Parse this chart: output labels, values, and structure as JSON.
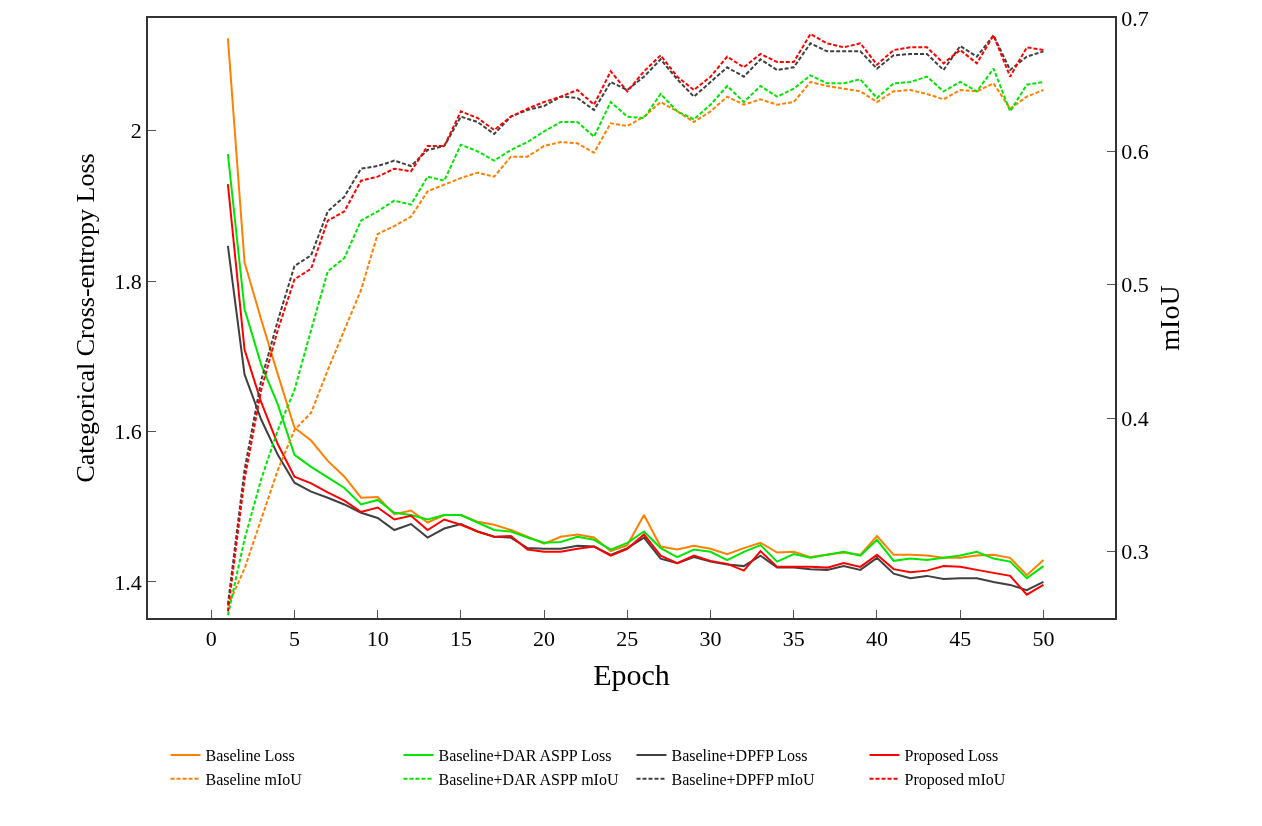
{
  "chart_data": {
    "type": "line",
    "xlabel": "Epoch",
    "ylabel": "Categorical Cross-entropy Loss",
    "y2label": "mIoU",
    "x": [
      1,
      2,
      3,
      4,
      5,
      6,
      7,
      8,
      9,
      10,
      11,
      12,
      13,
      14,
      15,
      16,
      17,
      18,
      19,
      20,
      21,
      22,
      23,
      24,
      25,
      26,
      27,
      28,
      29,
      30,
      31,
      32,
      33,
      34,
      35,
      36,
      37,
      38,
      39,
      40,
      41,
      42,
      43,
      44,
      45,
      46,
      47,
      48,
      49,
      50
    ],
    "xlim": [
      -3.8,
      54.3
    ],
    "xticks": [
      0,
      5,
      10,
      15,
      20,
      25,
      30,
      35,
      40,
      45,
      50
    ],
    "ylim": [
      1.352,
      2.15
    ],
    "yticks": [
      1.4,
      1.6,
      1.8,
      2
    ],
    "y2lim": [
      0.25,
      0.7
    ],
    "y2ticks": [
      0.3,
      0.4,
      0.5,
      0.6,
      0.7
    ],
    "legend": "bottom",
    "series": [
      {
        "name": "Baseline Loss",
        "color": "#ff8000",
        "line_style": "solid",
        "values": [
          2.123,
          1.825,
          1.749,
          1.676,
          1.605,
          1.588,
          1.561,
          1.54,
          1.512,
          1.513,
          1.49,
          1.495,
          1.479,
          1.489,
          1.489,
          1.48,
          1.476,
          1.469,
          1.46,
          1.451,
          1.46,
          1.463,
          1.459,
          1.441,
          1.449,
          1.489,
          1.447,
          1.443,
          1.448,
          1.444,
          1.437,
          1.445,
          1.452,
          1.439,
          1.44,
          1.433,
          1.436,
          1.439,
          1.436,
          1.461,
          1.436,
          1.436,
          1.435,
          1.432,
          1.432,
          1.435,
          1.436,
          1.432,
          1.409,
          1.429
        ]
      },
      {
        "name": "Baseline+DAR ASPP Loss",
        "color": "#00e600",
        "line_style": "solid",
        "values": [
          1.969,
          1.763,
          1.689,
          1.636,
          1.569,
          1.553,
          1.539,
          1.525,
          1.503,
          1.509,
          1.492,
          1.489,
          1.483,
          1.489,
          1.489,
          1.479,
          1.469,
          1.467,
          1.459,
          1.452,
          1.453,
          1.46,
          1.456,
          1.443,
          1.452,
          1.467,
          1.445,
          1.433,
          1.443,
          1.44,
          1.429,
          1.44,
          1.449,
          1.427,
          1.437,
          1.432,
          1.436,
          1.44,
          1.435,
          1.456,
          1.428,
          1.431,
          1.429,
          1.432,
          1.435,
          1.44,
          1.431,
          1.427,
          1.405,
          1.421
        ]
      },
      {
        "name": "Baseline+DPFP Loss",
        "color": "#404040",
        "line_style": "solid",
        "values": [
          1.847,
          1.676,
          1.616,
          1.569,
          1.532,
          1.52,
          1.512,
          1.503,
          1.492,
          1.485,
          1.469,
          1.477,
          1.459,
          1.471,
          1.477,
          1.467,
          1.46,
          1.459,
          1.445,
          1.444,
          1.444,
          1.448,
          1.447,
          1.436,
          1.445,
          1.459,
          1.431,
          1.425,
          1.433,
          1.427,
          1.423,
          1.421,
          1.435,
          1.419,
          1.419,
          1.417,
          1.416,
          1.421,
          1.416,
          1.432,
          1.411,
          1.405,
          1.408,
          1.404,
          1.405,
          1.405,
          1.4,
          1.396,
          1.389,
          1.4
        ]
      },
      {
        "name": "Proposed Loss",
        "color": "#ff0000",
        "line_style": "solid",
        "values": [
          1.929,
          1.709,
          1.639,
          1.583,
          1.54,
          1.531,
          1.519,
          1.508,
          1.493,
          1.499,
          1.483,
          1.488,
          1.469,
          1.483,
          1.476,
          1.467,
          1.46,
          1.461,
          1.443,
          1.44,
          1.44,
          1.444,
          1.447,
          1.435,
          1.444,
          1.463,
          1.435,
          1.425,
          1.435,
          1.428,
          1.424,
          1.415,
          1.441,
          1.42,
          1.42,
          1.42,
          1.419,
          1.425,
          1.42,
          1.436,
          1.417,
          1.413,
          1.415,
          1.421,
          1.42,
          1.416,
          1.412,
          1.408,
          1.383,
          1.396
        ]
      },
      {
        "name": "Baseline mIoU",
        "color": "#ff8000",
        "line_style": "dashed",
        "axis": "y2",
        "values": [
          0.259,
          0.287,
          0.324,
          0.361,
          0.391,
          0.404,
          0.436,
          0.466,
          0.496,
          0.538,
          0.544,
          0.551,
          0.57,
          0.575,
          0.58,
          0.584,
          0.581,
          0.596,
          0.596,
          0.604,
          0.607,
          0.606,
          0.599,
          0.621,
          0.619,
          0.626,
          0.637,
          0.63,
          0.622,
          0.63,
          0.641,
          0.635,
          0.639,
          0.635,
          0.637,
          0.652,
          0.649,
          0.647,
          0.645,
          0.637,
          0.645,
          0.646,
          0.643,
          0.639,
          0.646,
          0.645,
          0.651,
          0.632,
          0.641,
          0.646
        ]
      },
      {
        "name": "Baseline+DAR ASPP mIoU",
        "color": "#00e600",
        "line_style": "dashed",
        "axis": "y2",
        "values": [
          0.252,
          0.309,
          0.354,
          0.391,
          0.421,
          0.466,
          0.51,
          0.52,
          0.548,
          0.555,
          0.563,
          0.56,
          0.581,
          0.578,
          0.605,
          0.6,
          0.593,
          0.601,
          0.607,
          0.615,
          0.622,
          0.622,
          0.611,
          0.637,
          0.626,
          0.625,
          0.643,
          0.63,
          0.624,
          0.635,
          0.649,
          0.637,
          0.649,
          0.641,
          0.647,
          0.657,
          0.651,
          0.651,
          0.654,
          0.64,
          0.651,
          0.652,
          0.656,
          0.645,
          0.652,
          0.645,
          0.662,
          0.63,
          0.65,
          0.652
        ]
      },
      {
        "name": "Baseline+DPFP mIoU",
        "color": "#404040",
        "line_style": "dashed",
        "axis": "y2",
        "values": [
          0.26,
          0.361,
          0.428,
          0.473,
          0.514,
          0.522,
          0.555,
          0.566,
          0.587,
          0.589,
          0.593,
          0.589,
          0.601,
          0.604,
          0.626,
          0.622,
          0.613,
          0.626,
          0.631,
          0.634,
          0.641,
          0.64,
          0.631,
          0.652,
          0.646,
          0.656,
          0.669,
          0.654,
          0.641,
          0.652,
          0.663,
          0.656,
          0.669,
          0.661,
          0.663,
          0.681,
          0.675,
          0.675,
          0.675,
          0.662,
          0.672,
          0.673,
          0.673,
          0.661,
          0.679,
          0.671,
          0.687,
          0.661,
          0.671,
          0.675
        ]
      },
      {
        "name": "Proposed mIoU",
        "color": "#ff0000",
        "line_style": "dashed",
        "axis": "y2",
        "values": [
          0.255,
          0.354,
          0.421,
          0.466,
          0.504,
          0.512,
          0.548,
          0.555,
          0.578,
          0.581,
          0.587,
          0.585,
          0.604,
          0.604,
          0.63,
          0.625,
          0.616,
          0.626,
          0.632,
          0.637,
          0.641,
          0.646,
          0.635,
          0.66,
          0.645,
          0.66,
          0.672,
          0.656,
          0.646,
          0.656,
          0.671,
          0.663,
          0.673,
          0.667,
          0.667,
          0.688,
          0.681,
          0.678,
          0.681,
          0.665,
          0.676,
          0.678,
          0.678,
          0.666,
          0.676,
          0.666,
          0.687,
          0.656,
          0.678,
          0.676
        ]
      }
    ]
  }
}
